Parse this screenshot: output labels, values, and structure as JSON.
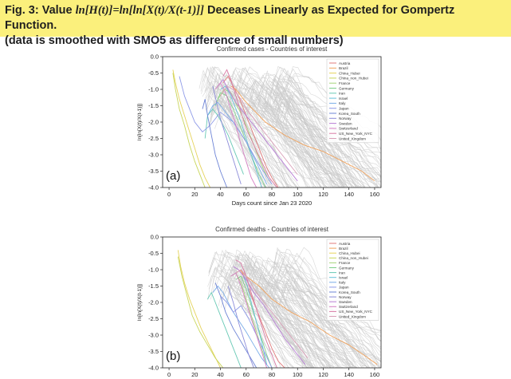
{
  "banner": {
    "part1": "Fig. 3: Value ",
    "formula": "ln[H(t)]=ln[ln[X(t)/X(t-1)]]",
    "part2": " Deceases Linearly as Expected for Gompertz Function.",
    "line2": "(data is smoothed with SMO5 as difference of small numbers)"
  },
  "chart_data": [
    {
      "type": "line",
      "panel_label": "(a)",
      "title": "Confirmed cases - Countries of interest",
      "xlabel": "Days count since Jan 23 2020",
      "ylabel": "ln[ln[X(t)/X(t-1)]]",
      "xlim": [
        -5,
        165
      ],
      "ylim": [
        -4.0,
        0.0
      ],
      "xticks": [
        "0",
        "20",
        "40",
        "60",
        "80",
        "100",
        "120",
        "140",
        "160"
      ],
      "yticks": [
        "0.0",
        "-0.5",
        "-1.0",
        "-1.5",
        "-2.0",
        "-2.5",
        "-3.0",
        "-3.5",
        "-4.0"
      ],
      "background_series_note": "many grey lines (other countries)",
      "series": [
        {
          "name": "Austria",
          "color": "#e07b7b",
          "x": [
            42,
            46,
            50,
            55,
            60,
            65,
            70,
            75,
            80,
            85
          ],
          "y": [
            -0.8,
            -0.6,
            -0.9,
            -1.3,
            -1.8,
            -2.3,
            -2.8,
            -3.3,
            -3.7,
            -4.0
          ]
        },
        {
          "name": "Brazil",
          "color": "#f0a35e",
          "x": [
            48,
            52,
            58,
            65,
            75,
            90,
            105,
            120,
            135,
            150,
            160
          ],
          "y": [
            -0.9,
            -1.0,
            -1.3,
            -1.6,
            -2.0,
            -2.4,
            -2.7,
            -2.9,
            -3.2,
            -3.5,
            -3.8
          ]
        },
        {
          "name": "China_Hubei",
          "color": "#e6d35c",
          "x": [
            3,
            5,
            8,
            12,
            16,
            20,
            24,
            28,
            32
          ],
          "y": [
            -0.4,
            -0.8,
            -1.3,
            -1.8,
            -2.3,
            -2.8,
            -3.3,
            -3.7,
            -4.0
          ]
        },
        {
          "name": "China_non_Hubei",
          "color": "#c8d65a",
          "x": [
            3,
            5,
            8,
            12,
            16,
            20,
            24,
            28
          ],
          "y": [
            -0.5,
            -1.0,
            -1.6,
            -2.1,
            -2.7,
            -3.2,
            -3.6,
            -4.0
          ]
        },
        {
          "name": "France",
          "color": "#a7d47a",
          "x": [
            38,
            43,
            48,
            53,
            58,
            63,
            68,
            73,
            78
          ],
          "y": [
            -1.3,
            -1.0,
            -1.1,
            -1.5,
            -1.9,
            -2.4,
            -2.9,
            -3.4,
            -3.8
          ]
        },
        {
          "name": "Germany",
          "color": "#7fcf8a",
          "x": [
            36,
            40,
            45,
            50,
            55,
            60,
            65,
            70,
            75
          ],
          "y": [
            -1.5,
            -1.1,
            -1.2,
            -1.6,
            -2.1,
            -2.6,
            -3.1,
            -3.6,
            -4.0
          ]
        },
        {
          "name": "Iran",
          "color": "#68c9b5",
          "x": [
            28,
            30,
            34,
            38,
            42,
            46,
            50,
            54,
            58
          ],
          "y": [
            -2.5,
            -1.8,
            -1.6,
            -1.8,
            -2.1,
            -2.4,
            -2.8,
            -3.2,
            -3.6
          ]
        },
        {
          "name": "Israel",
          "color": "#68c1d9",
          "x": [
            40,
            44,
            48,
            52,
            56,
            60,
            64,
            68,
            72
          ],
          "y": [
            -1.0,
            -0.9,
            -1.2,
            -1.6,
            -2.0,
            -2.5,
            -3.0,
            -3.5,
            -4.0
          ]
        },
        {
          "name": "Italy",
          "color": "#7aaee8",
          "x": [
            30,
            34,
            38,
            42,
            46,
            50,
            55,
            60,
            65,
            70,
            76
          ],
          "y": [
            -1.8,
            -1.5,
            -1.4,
            -1.6,
            -1.8,
            -2.0,
            -2.3,
            -2.6,
            -3.0,
            -3.4,
            -3.9
          ]
        },
        {
          "name": "Japan",
          "color": "#8f9be8",
          "x": [
            8,
            12,
            16,
            20,
            26,
            32,
            40,
            50,
            60,
            70,
            80
          ],
          "y": [
            -0.6,
            -1.2,
            -1.6,
            -2.0,
            -2.3,
            -2.1,
            -1.7,
            -2.0,
            -2.6,
            -3.3,
            -3.9
          ]
        },
        {
          "name": "Korea_South",
          "color": "#6d84d6",
          "x": [
            26,
            28,
            30,
            33,
            36,
            40,
            45
          ],
          "y": [
            -1.6,
            -1.3,
            -1.8,
            -2.4,
            -3.0,
            -3.5,
            -4.0
          ]
        },
        {
          "name": "Norway",
          "color": "#8c8cd9",
          "x": [
            34,
            37,
            40,
            44,
            48,
            52,
            56
          ],
          "y": [
            -0.9,
            -1.4,
            -1.9,
            -2.4,
            -2.9,
            -3.4,
            -3.9
          ]
        },
        {
          "name": "Sweden",
          "color": "#b97fd6",
          "x": [
            38,
            42,
            46,
            52,
            60,
            70,
            80,
            90,
            100
          ],
          "y": [
            -0.9,
            -0.7,
            -1.0,
            -1.4,
            -1.8,
            -2.3,
            -2.8,
            -3.3,
            -3.8
          ]
        },
        {
          "name": "Switzerland",
          "color": "#d67fc4",
          "x": [
            36,
            40,
            44,
            48,
            52,
            56,
            60,
            64,
            68
          ],
          "y": [
            -1.0,
            -0.8,
            -1.1,
            -1.6,
            -2.1,
            -2.7,
            -3.2,
            -3.7,
            -4.0
          ]
        },
        {
          "name": "US_New_York_NYC",
          "color": "#d97aa5",
          "x": [
            42,
            45,
            48,
            52,
            56,
            60,
            66,
            72,
            78,
            84
          ],
          "y": [
            -0.6,
            -0.4,
            -0.7,
            -1.2,
            -1.7,
            -2.2,
            -2.7,
            -3.2,
            -3.7,
            -4.0
          ]
        },
        {
          "name": "United_Kingdom",
          "color": "#d9a0b8",
          "x": [
            40,
            45,
            50,
            56,
            62,
            70,
            80,
            90,
            100
          ],
          "y": [
            -1.2,
            -0.9,
            -1.0,
            -1.3,
            -1.7,
            -2.1,
            -2.6,
            -3.1,
            -3.6
          ]
        }
      ]
    },
    {
      "type": "line",
      "panel_label": "(b)",
      "title": "Confirmed deaths - Countries of interest",
      "xlabel": "Days count since Jan 23 2020",
      "ylabel": "ln[ln[X(t)/X(t-1)]]",
      "xlim": [
        -5,
        165
      ],
      "ylim": [
        -4.0,
        0.0
      ],
      "xticks": [
        "0",
        "20",
        "40",
        "60",
        "80",
        "100",
        "120",
        "140",
        "160"
      ],
      "yticks": [
        "0.0",
        "-0.5",
        "-1.0",
        "-1.5",
        "-2.0",
        "-2.5",
        "-3.0",
        "-3.5",
        "-4.0"
      ],
      "background_series_note": "many grey lines (other countries)",
      "series": [
        {
          "name": "Austria",
          "color": "#e07b7b",
          "x": [
            52,
            56,
            60,
            65,
            70,
            75,
            80,
            85,
            90
          ],
          "y": [
            -1.1,
            -1.0,
            -1.4,
            -1.9,
            -2.4,
            -2.9,
            -3.4,
            -3.8,
            -4.0
          ]
        },
        {
          "name": "Brazil",
          "color": "#f0a35e",
          "x": [
            55,
            60,
            70,
            80,
            95,
            110,
            125,
            140,
            155,
            162
          ],
          "y": [
            -1.0,
            -1.2,
            -1.5,
            -1.9,
            -2.3,
            -2.6,
            -3.0,
            -3.3,
            -3.7,
            -3.9
          ]
        },
        {
          "name": "China_Hubei",
          "color": "#e6d35c",
          "x": [
            7,
            9,
            12,
            16,
            20,
            25,
            30,
            35,
            40
          ],
          "y": [
            -0.4,
            -0.9,
            -1.4,
            -1.9,
            -2.3,
            -2.8,
            -3.2,
            -3.6,
            -4.0
          ]
        },
        {
          "name": "China_non_Hubei",
          "color": "#c8d65a",
          "x": [
            7,
            10,
            14,
            18,
            24,
            30,
            36,
            42
          ],
          "y": [
            -0.6,
            -1.2,
            -1.8,
            -2.4,
            -2.9,
            -3.3,
            -3.7,
            -4.0
          ]
        },
        {
          "name": "France",
          "color": "#a7d47a",
          "x": [
            48,
            52,
            56,
            60,
            64,
            68,
            72,
            76
          ],
          "y": [
            -1.2,
            -1.1,
            -1.4,
            -1.9,
            -2.4,
            -2.9,
            -3.4,
            -3.9
          ]
        },
        {
          "name": "Germany",
          "color": "#7fcf8a",
          "x": [
            52,
            56,
            60,
            64,
            68,
            72,
            76,
            80
          ],
          "y": [
            -1.3,
            -1.2,
            -1.6,
            -2.1,
            -2.6,
            -3.1,
            -3.6,
            -4.0
          ]
        },
        {
          "name": "Iran",
          "color": "#68c9b5",
          "x": [
            30,
            33,
            36,
            40,
            44,
            48,
            52,
            56
          ],
          "y": [
            -1.9,
            -1.7,
            -2.0,
            -2.4,
            -2.8,
            -3.2,
            -3.6,
            -4.0
          ]
        },
        {
          "name": "Israel",
          "color": "#68c1d9",
          "x": [
            58,
            61,
            64,
            68,
            72,
            76
          ],
          "y": [
            -1.2,
            -1.5,
            -2.0,
            -2.6,
            -3.2,
            -3.9
          ]
        },
        {
          "name": "Italy",
          "color": "#7aaee8",
          "x": [
            34,
            38,
            42,
            46,
            50,
            55,
            60,
            66,
            72,
            78
          ],
          "y": [
            -1.7,
            -1.5,
            -1.7,
            -2.0,
            -2.3,
            -2.6,
            -2.9,
            -3.3,
            -3.7,
            -4.0
          ]
        },
        {
          "name": "Japan",
          "color": "#8f9be8",
          "x": [
            40,
            45,
            50,
            56,
            62,
            68,
            74,
            80
          ],
          "y": [
            -1.8,
            -2.0,
            -2.3,
            -2.1,
            -2.5,
            -3.0,
            -3.5,
            -4.0
          ]
        },
        {
          "name": "Korea_South",
          "color": "#6d84d6",
          "x": [
            36,
            40,
            44,
            50,
            56,
            62,
            68
          ],
          "y": [
            -1.4,
            -1.8,
            -2.3,
            -2.8,
            -3.2,
            -3.6,
            -4.0
          ]
        },
        {
          "name": "Norway",
          "color": "#8c8cd9",
          "x": [
            46,
            50,
            54,
            58,
            62,
            66
          ],
          "y": [
            -1.5,
            -2.0,
            -2.6,
            -3.1,
            -3.6,
            -4.0
          ]
        },
        {
          "name": "Sweden",
          "color": "#b97fd6",
          "x": [
            50,
            54,
            60,
            66,
            74,
            82,
            90,
            98,
            106
          ],
          "y": [
            -0.9,
            -1.0,
            -1.3,
            -1.7,
            -2.1,
            -2.6,
            -3.1,
            -3.5,
            -3.9
          ]
        },
        {
          "name": "Switzerland",
          "color": "#d67fc4",
          "x": [
            48,
            52,
            56,
            60,
            64,
            68,
            72,
            76
          ],
          "y": [
            -1.2,
            -1.1,
            -1.5,
            -2.0,
            -2.5,
            -3.0,
            -3.5,
            -4.0
          ]
        },
        {
          "name": "US_New_York_NYC",
          "color": "#d97aa5",
          "x": [
            52,
            56,
            60,
            64,
            68,
            72,
            76,
            80,
            84
          ],
          "y": [
            -0.7,
            -0.8,
            -1.2,
            -1.7,
            -2.2,
            -2.7,
            -3.2,
            -3.6,
            -4.0
          ]
        },
        {
          "name": "United_Kingdom",
          "color": "#d9a0b8",
          "x": [
            52,
            56,
            62,
            68,
            76,
            84,
            92,
            100,
            108
          ],
          "y": [
            -1.1,
            -1.0,
            -1.3,
            -1.7,
            -2.1,
            -2.5,
            -2.9,
            -3.3,
            -3.7
          ]
        }
      ]
    }
  ]
}
